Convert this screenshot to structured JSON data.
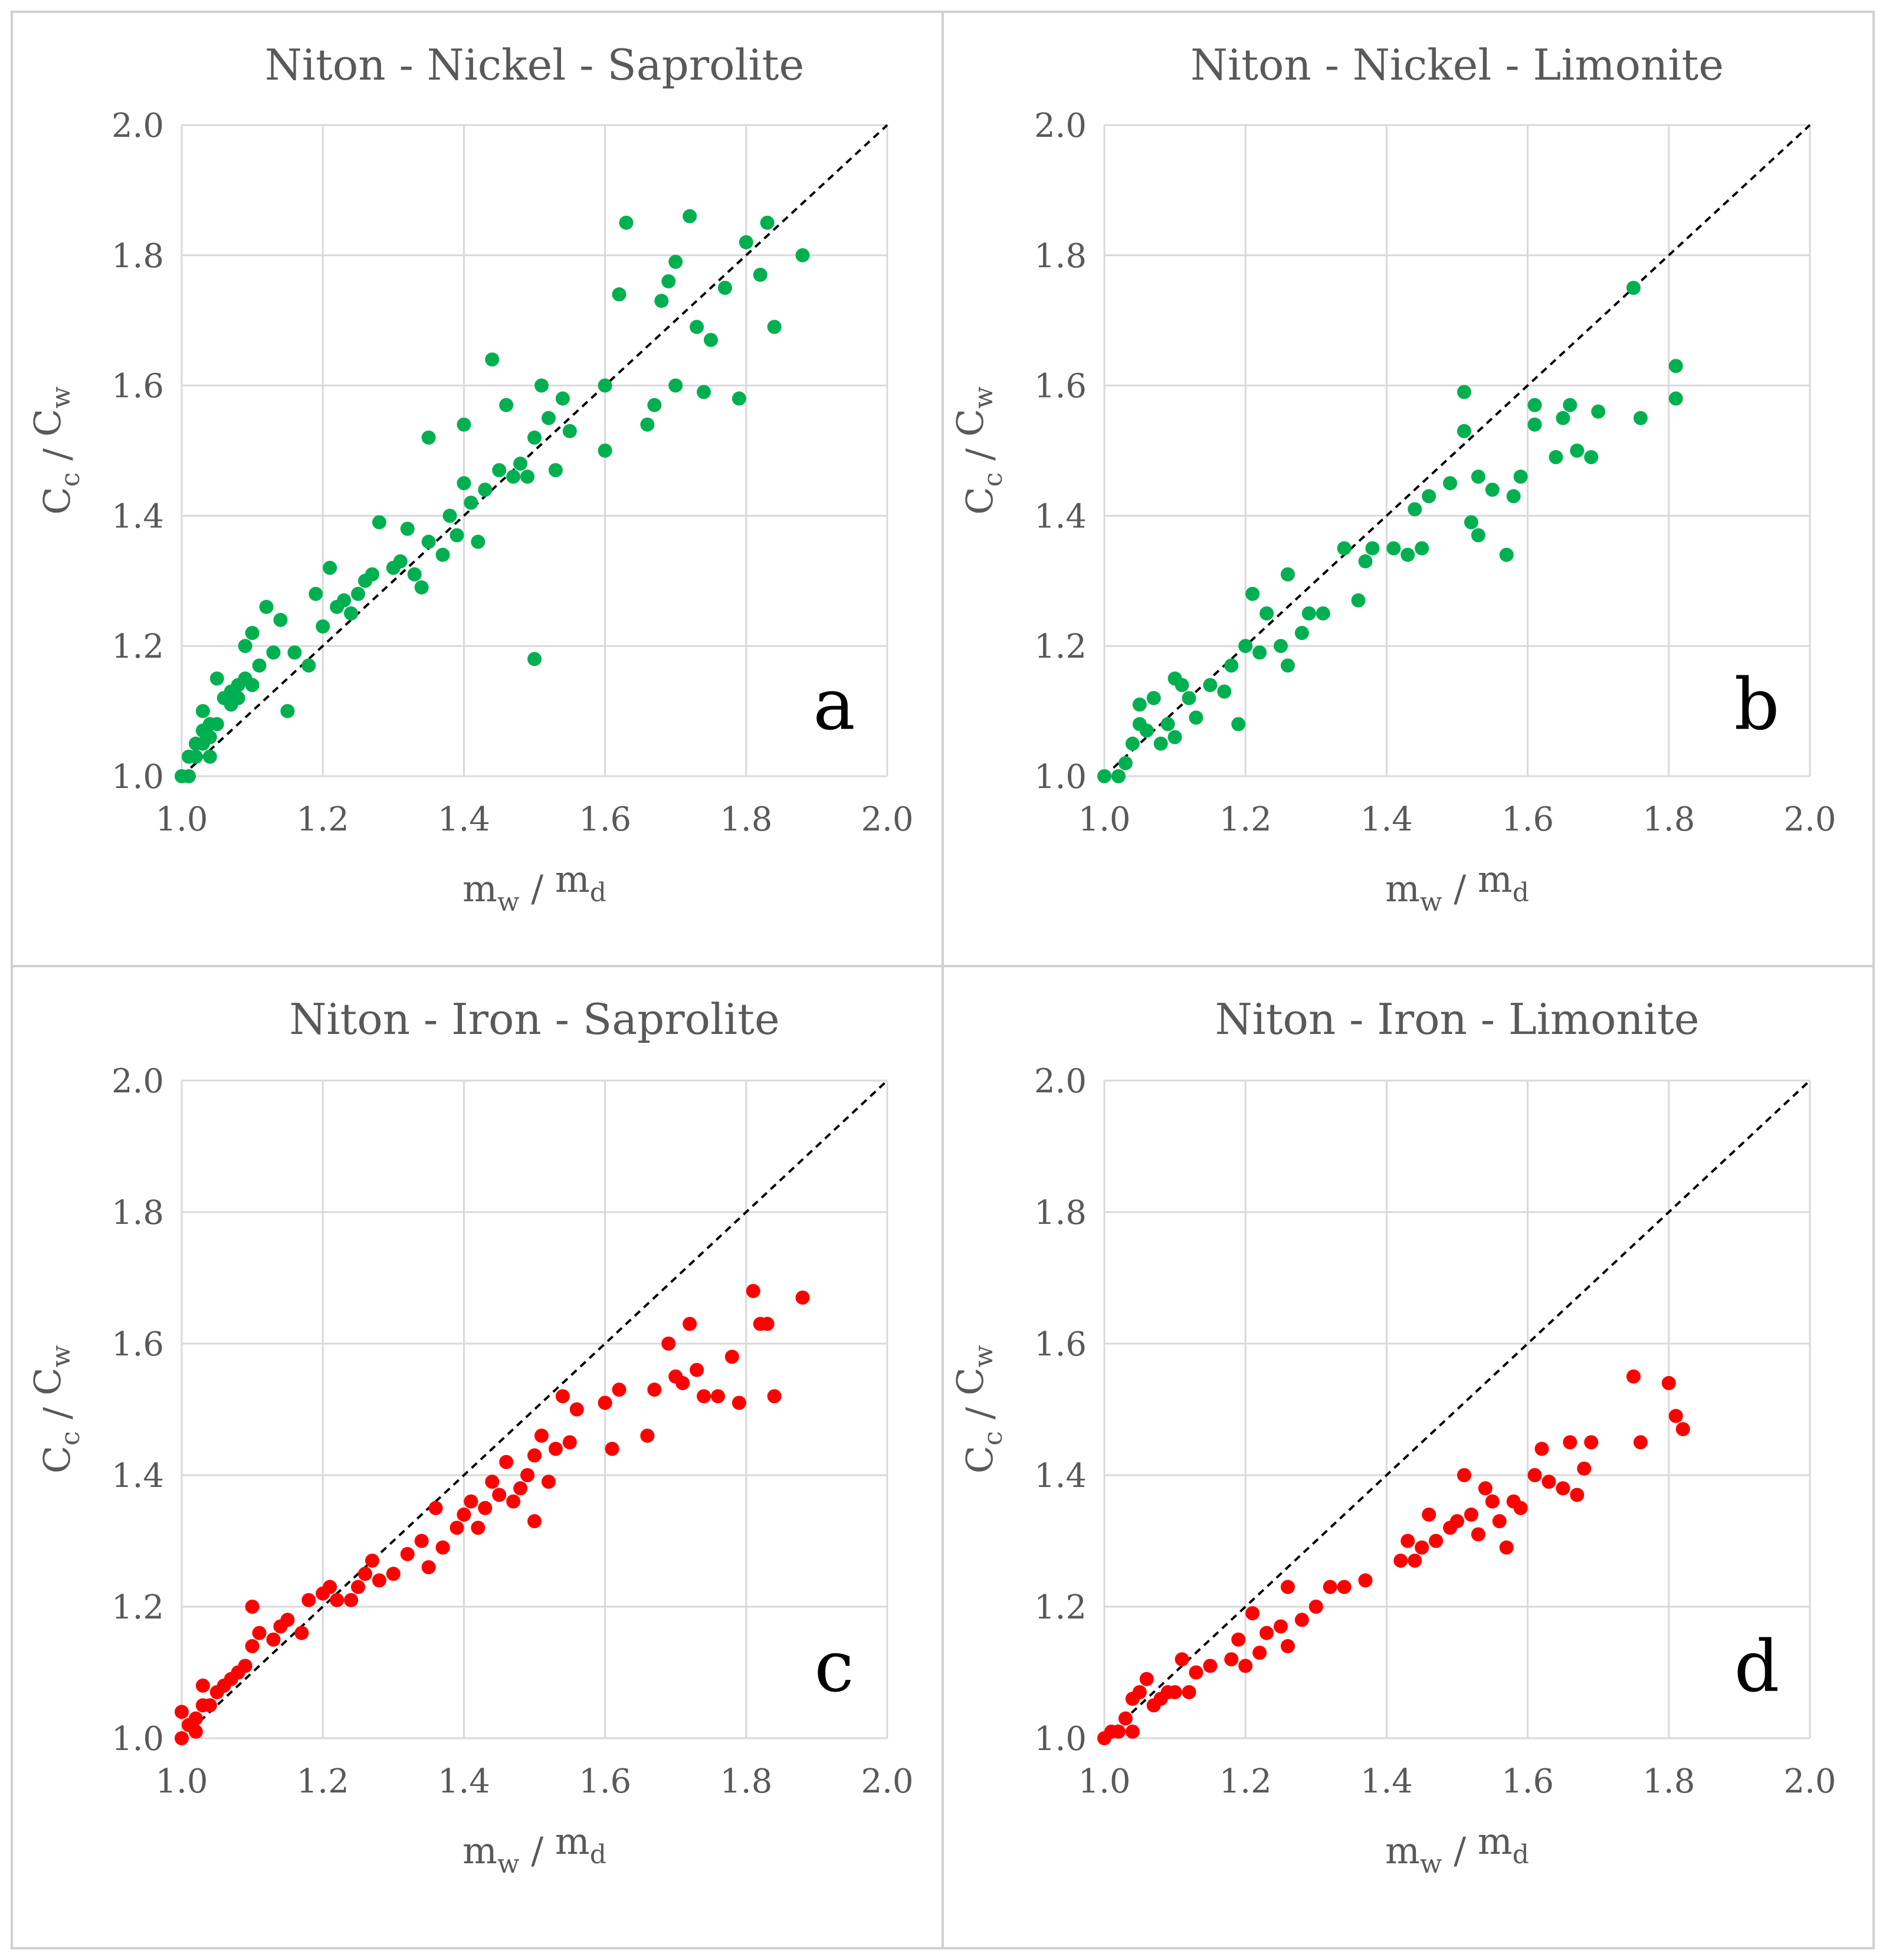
{
  "colors": {
    "green": "#00b050",
    "red": "#ff0000",
    "grid": "#d9d9d9",
    "panel_border": "#d0d0d0",
    "text": "#595959"
  },
  "chart_data": [
    {
      "type": "scatter",
      "title": "Niton - Nickel - Saprolite",
      "panel_label": "a",
      "color": "#00b050",
      "xlabel": {
        "main": "m",
        "sub1": "w",
        "sep": " / ",
        "main2": "m",
        "sub2": "d"
      },
      "ylabel": {
        "main": "C",
        "sub1": "c",
        "sep": " / ",
        "main2": "C",
        "sub2": "w"
      },
      "xlim": [
        1.0,
        2.0
      ],
      "ylim": [
        1.0,
        2.0
      ],
      "xticks": [
        "1.0",
        "1.2",
        "1.4",
        "1.6",
        "1.8",
        "2.0"
      ],
      "yticks": [
        "1.0",
        "1.2",
        "1.4",
        "1.6",
        "1.8",
        "2.0"
      ],
      "reference_line": "y = x (dashed)",
      "points": [
        [
          1.0,
          1.0
        ],
        [
          1.01,
          1.03
        ],
        [
          1.01,
          1.0
        ],
        [
          1.02,
          1.03
        ],
        [
          1.02,
          1.05
        ],
        [
          1.03,
          1.07
        ],
        [
          1.03,
          1.05
        ],
        [
          1.03,
          1.1
        ],
        [
          1.04,
          1.06
        ],
        [
          1.04,
          1.08
        ],
        [
          1.04,
          1.03
        ],
        [
          1.05,
          1.08
        ],
        [
          1.05,
          1.15
        ],
        [
          1.06,
          1.12
        ],
        [
          1.07,
          1.13
        ],
        [
          1.07,
          1.11
        ],
        [
          1.08,
          1.14
        ],
        [
          1.08,
          1.12
        ],
        [
          1.09,
          1.15
        ],
        [
          1.09,
          1.2
        ],
        [
          1.1,
          1.22
        ],
        [
          1.1,
          1.14
        ],
        [
          1.11,
          1.17
        ],
        [
          1.12,
          1.26
        ],
        [
          1.13,
          1.19
        ],
        [
          1.14,
          1.24
        ],
        [
          1.15,
          1.1
        ],
        [
          1.16,
          1.19
        ],
        [
          1.18,
          1.17
        ],
        [
          1.19,
          1.28
        ],
        [
          1.2,
          1.23
        ],
        [
          1.21,
          1.32
        ],
        [
          1.22,
          1.26
        ],
        [
          1.23,
          1.27
        ],
        [
          1.24,
          1.25
        ],
        [
          1.25,
          1.28
        ],
        [
          1.26,
          1.3
        ],
        [
          1.27,
          1.31
        ],
        [
          1.28,
          1.39
        ],
        [
          1.3,
          1.32
        ],
        [
          1.31,
          1.33
        ],
        [
          1.32,
          1.38
        ],
        [
          1.33,
          1.31
        ],
        [
          1.34,
          1.29
        ],
        [
          1.35,
          1.36
        ],
        [
          1.35,
          1.52
        ],
        [
          1.37,
          1.34
        ],
        [
          1.38,
          1.4
        ],
        [
          1.39,
          1.37
        ],
        [
          1.4,
          1.45
        ],
        [
          1.4,
          1.54
        ],
        [
          1.41,
          1.42
        ],
        [
          1.42,
          1.36
        ],
        [
          1.43,
          1.44
        ],
        [
          1.44,
          1.64
        ],
        [
          1.45,
          1.47
        ],
        [
          1.46,
          1.57
        ],
        [
          1.47,
          1.46
        ],
        [
          1.48,
          1.48
        ],
        [
          1.49,
          1.46
        ],
        [
          1.5,
          1.18
        ],
        [
          1.5,
          1.52
        ],
        [
          1.51,
          1.6
        ],
        [
          1.52,
          1.55
        ],
        [
          1.53,
          1.47
        ],
        [
          1.54,
          1.58
        ],
        [
          1.55,
          1.53
        ],
        [
          1.6,
          1.5
        ],
        [
          1.6,
          1.6
        ],
        [
          1.62,
          1.74
        ],
        [
          1.63,
          1.85
        ],
        [
          1.66,
          1.54
        ],
        [
          1.67,
          1.57
        ],
        [
          1.68,
          1.73
        ],
        [
          1.69,
          1.76
        ],
        [
          1.7,
          1.6
        ],
        [
          1.7,
          1.79
        ],
        [
          1.72,
          1.86
        ],
        [
          1.73,
          1.69
        ],
        [
          1.74,
          1.59
        ],
        [
          1.75,
          1.67
        ],
        [
          1.77,
          1.75
        ],
        [
          1.79,
          1.58
        ],
        [
          1.8,
          1.82
        ],
        [
          1.82,
          1.77
        ],
        [
          1.83,
          1.85
        ],
        [
          1.84,
          1.69
        ],
        [
          1.88,
          1.8
        ]
      ]
    },
    {
      "type": "scatter",
      "title": "Niton - Nickel - Limonite",
      "panel_label": "b",
      "color": "#00b050",
      "xlabel": {
        "main": "m",
        "sub1": "w",
        "sep": " / ",
        "main2": "m",
        "sub2": "d"
      },
      "ylabel": {
        "main": "C",
        "sub1": "c",
        "sep": " / ",
        "main2": "C",
        "sub2": "w"
      },
      "xlim": [
        1.0,
        2.0
      ],
      "ylim": [
        1.0,
        2.0
      ],
      "xticks": [
        "1.0",
        "1.2",
        "1.4",
        "1.6",
        "1.8",
        "2.0"
      ],
      "yticks": [
        "1.0",
        "1.2",
        "1.4",
        "1.6",
        "1.8",
        "2.0"
      ],
      "reference_line": "y = x (dashed)",
      "points": [
        [
          1.0,
          1.0
        ],
        [
          1.02,
          1.0
        ],
        [
          1.03,
          1.02
        ],
        [
          1.04,
          1.05
        ],
        [
          1.05,
          1.08
        ],
        [
          1.05,
          1.11
        ],
        [
          1.06,
          1.07
        ],
        [
          1.07,
          1.12
        ],
        [
          1.08,
          1.05
        ],
        [
          1.09,
          1.08
        ],
        [
          1.1,
          1.15
        ],
        [
          1.1,
          1.06
        ],
        [
          1.11,
          1.14
        ],
        [
          1.12,
          1.12
        ],
        [
          1.13,
          1.09
        ],
        [
          1.15,
          1.14
        ],
        [
          1.17,
          1.13
        ],
        [
          1.18,
          1.17
        ],
        [
          1.19,
          1.08
        ],
        [
          1.2,
          1.2
        ],
        [
          1.21,
          1.28
        ],
        [
          1.22,
          1.19
        ],
        [
          1.23,
          1.25
        ],
        [
          1.25,
          1.2
        ],
        [
          1.26,
          1.31
        ],
        [
          1.26,
          1.17
        ],
        [
          1.28,
          1.22
        ],
        [
          1.29,
          1.25
        ],
        [
          1.31,
          1.25
        ],
        [
          1.34,
          1.35
        ],
        [
          1.36,
          1.27
        ],
        [
          1.37,
          1.33
        ],
        [
          1.38,
          1.35
        ],
        [
          1.41,
          1.35
        ],
        [
          1.43,
          1.34
        ],
        [
          1.44,
          1.41
        ],
        [
          1.45,
          1.35
        ],
        [
          1.46,
          1.43
        ],
        [
          1.49,
          1.45
        ],
        [
          1.51,
          1.59
        ],
        [
          1.51,
          1.53
        ],
        [
          1.52,
          1.39
        ],
        [
          1.53,
          1.37
        ],
        [
          1.53,
          1.46
        ],
        [
          1.55,
          1.44
        ],
        [
          1.57,
          1.34
        ],
        [
          1.58,
          1.43
        ],
        [
          1.59,
          1.46
        ],
        [
          1.61,
          1.57
        ],
        [
          1.61,
          1.54
        ],
        [
          1.64,
          1.49
        ],
        [
          1.65,
          1.55
        ],
        [
          1.66,
          1.57
        ],
        [
          1.67,
          1.5
        ],
        [
          1.69,
          1.49
        ],
        [
          1.7,
          1.56
        ],
        [
          1.75,
          1.75
        ],
        [
          1.76,
          1.55
        ],
        [
          1.81,
          1.58
        ],
        [
          1.81,
          1.63
        ]
      ]
    },
    {
      "type": "scatter",
      "title": "Niton - Iron - Saprolite",
      "panel_label": "c",
      "color": "#ff0000",
      "xlabel": {
        "main": "m",
        "sub1": "w",
        "sep": " / ",
        "main2": "m",
        "sub2": "d"
      },
      "ylabel": {
        "main": "C",
        "sub1": "c",
        "sep": " / ",
        "main2": "C",
        "sub2": "w"
      },
      "xlim": [
        1.0,
        2.0
      ],
      "ylim": [
        1.0,
        2.0
      ],
      "xticks": [
        "1.0",
        "1.2",
        "1.4",
        "1.6",
        "1.8",
        "2.0"
      ],
      "yticks": [
        "1.0",
        "1.2",
        "1.4",
        "1.6",
        "1.8",
        "2.0"
      ],
      "reference_line": "y = x (dashed)",
      "points": [
        [
          1.0,
          1.0
        ],
        [
          1.0,
          1.04
        ],
        [
          1.01,
          1.02
        ],
        [
          1.02,
          1.03
        ],
        [
          1.02,
          1.01
        ],
        [
          1.03,
          1.05
        ],
        [
          1.03,
          1.08
        ],
        [
          1.04,
          1.05
        ],
        [
          1.05,
          1.07
        ],
        [
          1.06,
          1.08
        ],
        [
          1.07,
          1.09
        ],
        [
          1.08,
          1.1
        ],
        [
          1.09,
          1.11
        ],
        [
          1.1,
          1.14
        ],
        [
          1.1,
          1.2
        ],
        [
          1.11,
          1.16
        ],
        [
          1.13,
          1.15
        ],
        [
          1.14,
          1.17
        ],
        [
          1.15,
          1.18
        ],
        [
          1.17,
          1.16
        ],
        [
          1.18,
          1.21
        ],
        [
          1.2,
          1.22
        ],
        [
          1.21,
          1.23
        ],
        [
          1.22,
          1.21
        ],
        [
          1.24,
          1.21
        ],
        [
          1.25,
          1.23
        ],
        [
          1.26,
          1.25
        ],
        [
          1.27,
          1.27
        ],
        [
          1.28,
          1.24
        ],
        [
          1.3,
          1.25
        ],
        [
          1.32,
          1.28
        ],
        [
          1.34,
          1.3
        ],
        [
          1.35,
          1.26
        ],
        [
          1.36,
          1.35
        ],
        [
          1.37,
          1.29
        ],
        [
          1.39,
          1.32
        ],
        [
          1.4,
          1.34
        ],
        [
          1.41,
          1.36
        ],
        [
          1.42,
          1.32
        ],
        [
          1.43,
          1.35
        ],
        [
          1.44,
          1.39
        ],
        [
          1.45,
          1.37
        ],
        [
          1.46,
          1.42
        ],
        [
          1.47,
          1.36
        ],
        [
          1.48,
          1.38
        ],
        [
          1.49,
          1.4
        ],
        [
          1.5,
          1.43
        ],
        [
          1.5,
          1.33
        ],
        [
          1.51,
          1.46
        ],
        [
          1.52,
          1.39
        ],
        [
          1.53,
          1.44
        ],
        [
          1.54,
          1.52
        ],
        [
          1.55,
          1.45
        ],
        [
          1.56,
          1.5
        ],
        [
          1.6,
          1.51
        ],
        [
          1.61,
          1.44
        ],
        [
          1.62,
          1.53
        ],
        [
          1.66,
          1.46
        ],
        [
          1.67,
          1.53
        ],
        [
          1.69,
          1.6
        ],
        [
          1.7,
          1.55
        ],
        [
          1.71,
          1.54
        ],
        [
          1.72,
          1.63
        ],
        [
          1.73,
          1.56
        ],
        [
          1.74,
          1.52
        ],
        [
          1.76,
          1.52
        ],
        [
          1.78,
          1.58
        ],
        [
          1.79,
          1.51
        ],
        [
          1.81,
          1.68
        ],
        [
          1.82,
          1.63
        ],
        [
          1.83,
          1.63
        ],
        [
          1.84,
          1.52
        ],
        [
          1.88,
          1.67
        ]
      ]
    },
    {
      "type": "scatter",
      "title": "Niton - Iron - Limonite",
      "panel_label": "d",
      "color": "#ff0000",
      "xlabel": {
        "main": "m",
        "sub1": "w",
        "sep": " / ",
        "main2": "m",
        "sub2": "d"
      },
      "ylabel": {
        "main": "C",
        "sub1": "c",
        "sep": " / ",
        "main2": "C",
        "sub2": "w"
      },
      "xlim": [
        1.0,
        2.0
      ],
      "ylim": [
        1.0,
        2.0
      ],
      "xticks": [
        "1.0",
        "1.2",
        "1.4",
        "1.6",
        "1.8",
        "2.0"
      ],
      "yticks": [
        "1.0",
        "1.2",
        "1.4",
        "1.6",
        "1.8",
        "2.0"
      ],
      "reference_line": "y = x (dashed)",
      "points": [
        [
          1.0,
          1.0
        ],
        [
          1.01,
          1.01
        ],
        [
          1.02,
          1.01
        ],
        [
          1.03,
          1.03
        ],
        [
          1.04,
          1.06
        ],
        [
          1.04,
          1.01
        ],
        [
          1.05,
          1.07
        ],
        [
          1.06,
          1.09
        ],
        [
          1.07,
          1.05
        ],
        [
          1.08,
          1.06
        ],
        [
          1.09,
          1.07
        ],
        [
          1.1,
          1.07
        ],
        [
          1.11,
          1.12
        ],
        [
          1.12,
          1.07
        ],
        [
          1.13,
          1.1
        ],
        [
          1.15,
          1.11
        ],
        [
          1.18,
          1.12
        ],
        [
          1.19,
          1.15
        ],
        [
          1.2,
          1.11
        ],
        [
          1.21,
          1.19
        ],
        [
          1.22,
          1.13
        ],
        [
          1.23,
          1.16
        ],
        [
          1.25,
          1.17
        ],
        [
          1.26,
          1.23
        ],
        [
          1.26,
          1.14
        ],
        [
          1.28,
          1.18
        ],
        [
          1.3,
          1.2
        ],
        [
          1.32,
          1.23
        ],
        [
          1.34,
          1.23
        ],
        [
          1.37,
          1.24
        ],
        [
          1.42,
          1.27
        ],
        [
          1.43,
          1.3
        ],
        [
          1.44,
          1.27
        ],
        [
          1.45,
          1.29
        ],
        [
          1.46,
          1.34
        ],
        [
          1.47,
          1.3
        ],
        [
          1.49,
          1.32
        ],
        [
          1.5,
          1.33
        ],
        [
          1.51,
          1.4
        ],
        [
          1.52,
          1.34
        ],
        [
          1.53,
          1.31
        ],
        [
          1.54,
          1.38
        ],
        [
          1.55,
          1.36
        ],
        [
          1.56,
          1.33
        ],
        [
          1.57,
          1.29
        ],
        [
          1.58,
          1.36
        ],
        [
          1.59,
          1.35
        ],
        [
          1.61,
          1.4
        ],
        [
          1.62,
          1.44
        ],
        [
          1.63,
          1.39
        ],
        [
          1.65,
          1.38
        ],
        [
          1.66,
          1.45
        ],
        [
          1.67,
          1.37
        ],
        [
          1.68,
          1.41
        ],
        [
          1.69,
          1.45
        ],
        [
          1.75,
          1.55
        ],
        [
          1.76,
          1.45
        ],
        [
          1.8,
          1.54
        ],
        [
          1.81,
          1.49
        ],
        [
          1.82,
          1.47
        ]
      ]
    }
  ]
}
